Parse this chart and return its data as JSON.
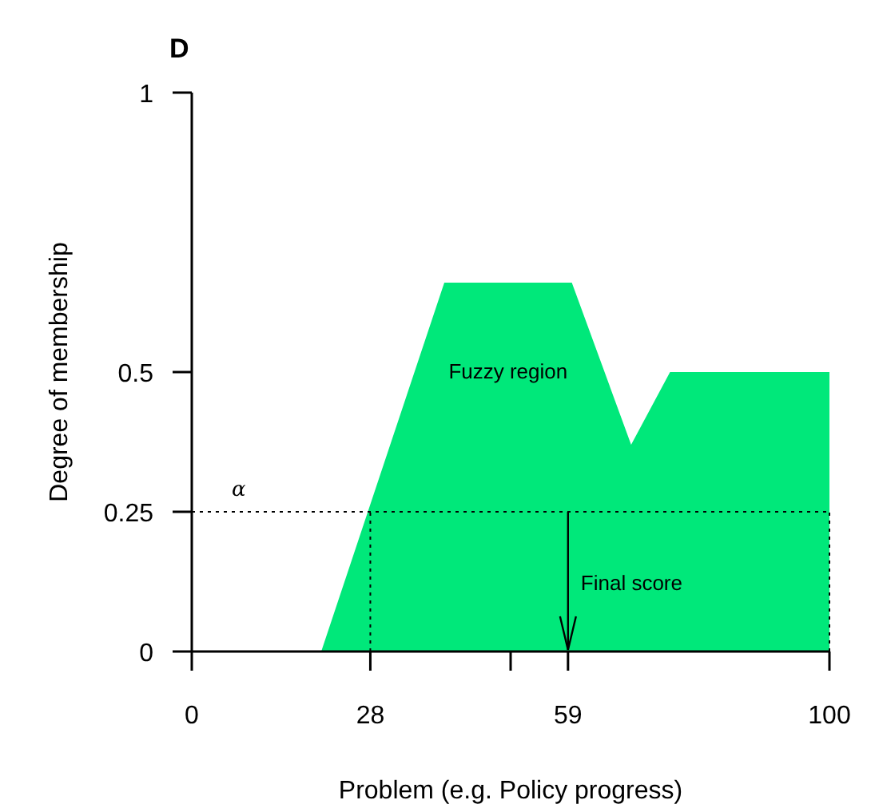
{
  "chart_data": {
    "type": "area",
    "title": "D",
    "xlabel": "Problem (e.g. Policy progress)",
    "ylabel": "Degree of membership",
    "x": [
      20.3,
      39.6,
      59.6,
      68.9,
      75,
      100,
      100
    ],
    "values": [
      0,
      0.66,
      0.66,
      0.37,
      0.5,
      0.5,
      0
    ],
    "color": "#00e87a",
    "xlim": [
      0,
      100
    ],
    "xticks": [
      0,
      28,
      {
        "value": 50,
        "label": null
      },
      59,
      100
    ],
    "ylim": [
      0,
      1
    ],
    "yticks": [
      0,
      0.25,
      0.5,
      1
    ],
    "ref_lines": [
      {
        "axis": "y",
        "value": 0.25,
        "label": "α",
        "line_style": "dotted"
      },
      {
        "axis": "x",
        "value": 28,
        "line_style": "dotted"
      },
      {
        "axis": "x",
        "value": 100,
        "line_style": "dotted"
      }
    ],
    "annotations": [
      "Fuzzy region",
      {
        "text": "Final score",
        "x": 59,
        "y": 0.25
      }
    ]
  }
}
